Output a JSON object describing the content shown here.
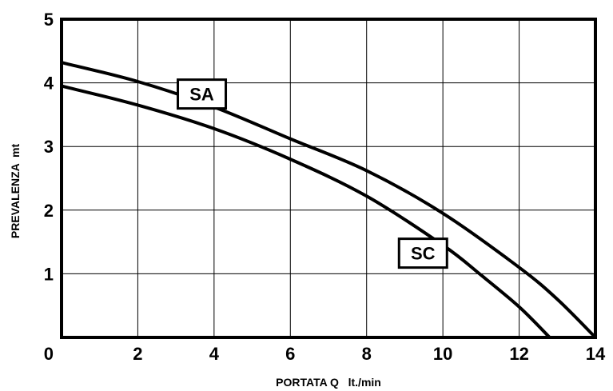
{
  "chart_data": {
    "type": "line",
    "xlabel": "PORTATA Q   lt./min",
    "ylabel": "PREVALENZA  mt",
    "xlim": [
      0,
      14
    ],
    "ylim": [
      0,
      5
    ],
    "x_ticks": [
      "0",
      "2",
      "4",
      "6",
      "8",
      "10",
      "12",
      "14"
    ],
    "y_ticks": [
      "0",
      "1",
      "2",
      "3",
      "4",
      "5"
    ],
    "grid": true,
    "series": [
      {
        "name": "SA",
        "points": [
          [
            0,
            4.32
          ],
          [
            2,
            4.02
          ],
          [
            4,
            3.62
          ],
          [
            6,
            3.12
          ],
          [
            8,
            2.62
          ],
          [
            10,
            1.95
          ],
          [
            12,
            1.1
          ],
          [
            13,
            0.6
          ],
          [
            14,
            0
          ]
        ]
      },
      {
        "name": "SC",
        "points": [
          [
            0,
            3.95
          ],
          [
            2,
            3.65
          ],
          [
            4,
            3.28
          ],
          [
            6,
            2.8
          ],
          [
            8,
            2.22
          ],
          [
            10,
            1.45
          ],
          [
            11,
            0.98
          ],
          [
            12,
            0.48
          ],
          [
            12.8,
            0
          ]
        ]
      }
    ]
  }
}
